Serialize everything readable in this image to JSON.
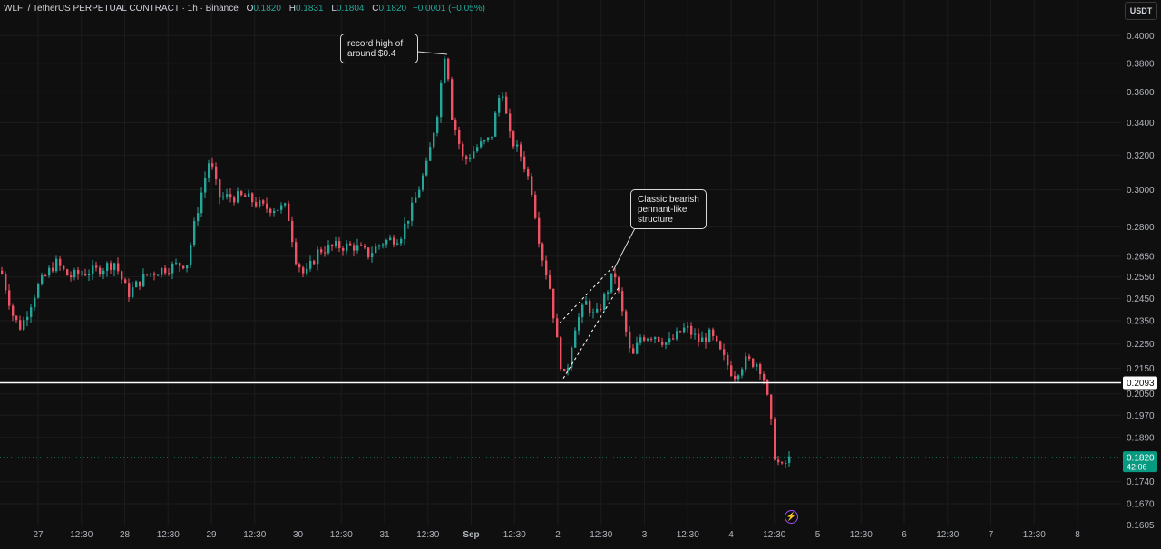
{
  "header": {
    "title": "WLFI / TetherUS PERPETUAL CONTRACT · 1h · Binance",
    "o_label": "O",
    "o_value": "0.1820",
    "h_label": "H",
    "h_value": "0.1831",
    "l_label": "L",
    "l_value": "0.1804",
    "c_label": "C",
    "c_value": "0.1820",
    "change": "−0.0001 (−0.05%)"
  },
  "currency_button": "USDT",
  "colors": {
    "background": "#0f0f0f",
    "up": "#26a69a",
    "down": "#ef5363",
    "grid": "#1c1c1c",
    "axis_text": "#b2b5be",
    "support_line": "#ffffff",
    "price_badge": "#089981"
  },
  "annotations": [
    {
      "text": "record high of\naround $0.4"
    },
    {
      "text": "Classic bearish\npennant-like\nstructure"
    }
  ],
  "chart_data": {
    "type": "candlestick",
    "y_scale": "log",
    "ylim": [
      0.1582,
      0.4247
    ],
    "y_ticks": [
      "0.4000",
      "0.3800",
      "0.3600",
      "0.3400",
      "0.3200",
      "0.3000",
      "0.2800",
      "0.2650",
      "0.2550",
      "0.2450",
      "0.2350",
      "0.2250",
      "0.2150",
      "0.2050",
      "0.1970",
      "0.1890",
      "0.1740",
      "0.1670",
      "0.1605"
    ],
    "x_ticks": [
      "27",
      "12:30",
      "28",
      "12:30",
      "29",
      "12:30",
      "30",
      "12:30",
      "31",
      "12:30",
      "Sep",
      "12:30",
      "2",
      "12:30",
      "3",
      "12:30",
      "4",
      "12:30",
      "5",
      "12:30",
      "6",
      "12:30",
      "7",
      "12:30",
      "8"
    ],
    "support_level": {
      "value": 0.2093,
      "label": "0.2093"
    },
    "last_price": {
      "value": 0.182,
      "label": "0.1820",
      "countdown": "42:06"
    },
    "path_points": [
      [
        0,
        0.258
      ],
      [
        14,
        0.236
      ],
      [
        22,
        0.232
      ],
      [
        40,
        0.25
      ],
      [
        60,
        0.262
      ],
      [
        75,
        0.255
      ],
      [
        90,
        0.257
      ],
      [
        105,
        0.258
      ],
      [
        125,
        0.262
      ],
      [
        140,
        0.247
      ],
      [
        160,
        0.256
      ],
      [
        180,
        0.259
      ],
      [
        205,
        0.262
      ],
      [
        218,
        0.292
      ],
      [
        230,
        0.318
      ],
      [
        240,
        0.296
      ],
      [
        255,
        0.296
      ],
      [
        270,
        0.296
      ],
      [
        290,
        0.29
      ],
      [
        315,
        0.29
      ],
      [
        325,
        0.264
      ],
      [
        335,
        0.255
      ],
      [
        350,
        0.268
      ],
      [
        370,
        0.27
      ],
      [
        390,
        0.27
      ],
      [
        405,
        0.266
      ],
      [
        420,
        0.272
      ],
      [
        440,
        0.275
      ],
      [
        455,
        0.292
      ],
      [
        470,
        0.315
      ],
      [
        482,
        0.35
      ],
      [
        490,
        0.392
      ],
      [
        497,
        0.345
      ],
      [
        510,
        0.316
      ],
      [
        525,
        0.325
      ],
      [
        540,
        0.33
      ],
      [
        552,
        0.365
      ],
      [
        560,
        0.332
      ],
      [
        575,
        0.318
      ],
      [
        585,
        0.3
      ],
      [
        595,
        0.268
      ],
      [
        605,
        0.25
      ],
      [
        615,
        0.22
      ],
      [
        622,
        0.21
      ],
      [
        632,
        0.232
      ],
      [
        645,
        0.243
      ],
      [
        655,
        0.236
      ],
      [
        668,
        0.248
      ],
      [
        676,
        0.258
      ],
      [
        686,
        0.236
      ],
      [
        695,
        0.218
      ],
      [
        705,
        0.228
      ],
      [
        720,
        0.229
      ],
      [
        735,
        0.225
      ],
      [
        755,
        0.232
      ],
      [
        770,
        0.226
      ],
      [
        782,
        0.229
      ],
      [
        795,
        0.22
      ],
      [
        808,
        0.212
      ],
      [
        820,
        0.218
      ],
      [
        835,
        0.217
      ],
      [
        842,
        0.21
      ],
      [
        848,
        0.196
      ],
      [
        853,
        0.183
      ],
      [
        860,
        0.178
      ],
      [
        867,
        0.181
      ],
      [
        872,
        0.182
      ]
    ]
  }
}
